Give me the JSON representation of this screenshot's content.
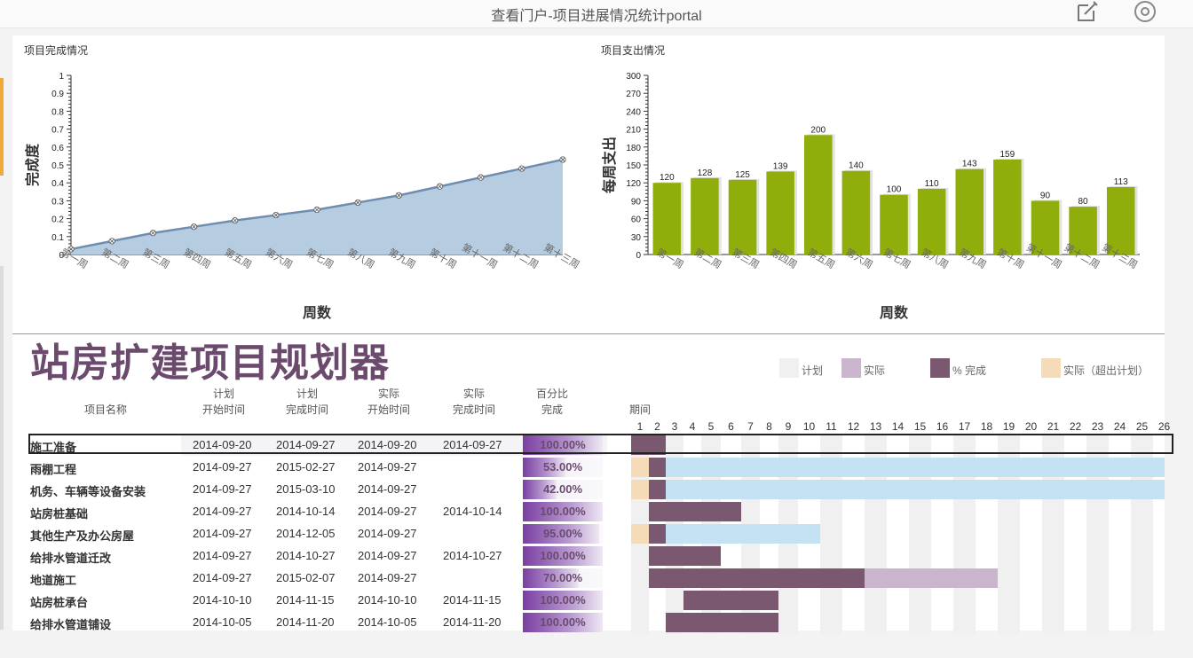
{
  "window": {
    "title": "查看门户-项目进展情况统计portal"
  },
  "icons": {
    "edit": "edit-icon",
    "target": "target-icon"
  },
  "chart_data": [
    {
      "type": "area",
      "title": "项目完成情况",
      "xlabel": "周数",
      "ylabel": "完成度",
      "categories": [
        "第一周",
        "第二周",
        "第三周",
        "第四周",
        "第五周",
        "第六周",
        "第七周",
        "第八周",
        "第九周",
        "第十周",
        "第十一周",
        "第十二周",
        "第十三周"
      ],
      "values": [
        0.03,
        0.075,
        0.12,
        0.155,
        0.19,
        0.22,
        0.25,
        0.29,
        0.33,
        0.38,
        0.43,
        0.48,
        0.53
      ],
      "ylim": [
        0,
        1
      ],
      "yticks": [
        "0",
        "0.1",
        "0.2",
        "0.3",
        "0.4",
        "0.5",
        "0.6",
        "0.7",
        "0.8",
        "0.9",
        "1"
      ],
      "grid": false,
      "color": "#b6cce0",
      "line_color": "#6f8db0"
    },
    {
      "type": "bar",
      "title": "项目支出情况",
      "xlabel": "周数",
      "ylabel": "每周支出",
      "categories": [
        "第一周",
        "第二周",
        "第三周",
        "第四周",
        "第五周",
        "第六周",
        "第七周",
        "第八周",
        "第九周",
        "第十周",
        "第十一周",
        "第十二周",
        "第十三周"
      ],
      "values": [
        120,
        128,
        125,
        139,
        200,
        140,
        100,
        110,
        143,
        159,
        90,
        80,
        113
      ],
      "ylim": [
        0,
        300
      ],
      "yticks": [
        "0",
        "30",
        "60",
        "90",
        "120",
        "150",
        "180",
        "210",
        "240",
        "270",
        "300"
      ],
      "grid": false,
      "color": "#8fae0c"
    }
  ],
  "planner": {
    "title": "站房扩建项目规划器",
    "legend": [
      {
        "label": "计划",
        "color": "#f0f0f0"
      },
      {
        "label": "实际",
        "color": "#c9b6cc"
      },
      {
        "label": "% 完成",
        "color": "#7a5870"
      },
      {
        "label": "实际（超出计划）",
        "color": "#f5dbb8"
      }
    ],
    "headers": {
      "name": "项目名称",
      "plan_start": [
        "计划",
        "开始时间"
      ],
      "plan_end": [
        "计划",
        "完成时间"
      ],
      "actual_start": [
        "实际",
        "开始时间"
      ],
      "actual_end": [
        "实际",
        "完成时间"
      ],
      "percent": [
        "百分比",
        "完成"
      ],
      "period": "期间"
    },
    "periods": [
      "1",
      "2",
      "3",
      "4",
      "5",
      "6",
      "7",
      "8",
      "9",
      "10",
      "11",
      "12",
      "13",
      "14",
      "15",
      "16",
      "17",
      "18",
      "19",
      "20",
      "21",
      "22",
      "23",
      "24",
      "25",
      "26"
    ],
    "rows": [
      {
        "name": "施工准备",
        "plan_start": "2014-09-20",
        "plan_end": "2014-09-27",
        "actual_start": "2014-09-20",
        "actual_end": "2014-09-27",
        "percent": "100.00%",
        "pct": 1.0
      },
      {
        "name": "雨棚工程",
        "plan_start": "2014-09-27",
        "plan_end": "2015-02-27",
        "actual_start": "2014-09-27",
        "actual_end": "",
        "percent": "53.00%",
        "pct": 0.53
      },
      {
        "name": "机务、车辆等设备安装",
        "plan_start": "2014-09-27",
        "plan_end": "2015-03-10",
        "actual_start": "2014-09-27",
        "actual_end": "",
        "percent": "42.00%",
        "pct": 0.42
      },
      {
        "name": "站房桩基础",
        "plan_start": "2014-09-27",
        "plan_end": "2014-10-14",
        "actual_start": "2014-09-27",
        "actual_end": "2014-10-14",
        "percent": "100.00%",
        "pct": 1.0
      },
      {
        "name": "其他生产及办公房屋",
        "plan_start": "2014-09-27",
        "plan_end": "2014-12-05",
        "actual_start": "2014-09-27",
        "actual_end": "",
        "percent": "95.00%",
        "pct": 0.95
      },
      {
        "name": "给排水管道迁改",
        "plan_start": "2014-09-27",
        "plan_end": "2014-10-27",
        "actual_start": "2014-09-27",
        "actual_end": "2014-10-27",
        "percent": "100.00%",
        "pct": 1.0
      },
      {
        "name": "地道施工",
        "plan_start": "2014-09-27",
        "plan_end": "2015-02-07",
        "actual_start": "2014-09-27",
        "actual_end": "",
        "percent": "70.00%",
        "pct": 0.7
      },
      {
        "name": "站房桩承台",
        "plan_start": "2014-10-10",
        "plan_end": "2014-11-15",
        "actual_start": "2014-10-10",
        "actual_end": "2014-11-15",
        "percent": "100.00%",
        "pct": 1.0
      },
      {
        "name": "给排水管道铺设",
        "plan_start": "2014-10-05",
        "plan_end": "2014-11-20",
        "actual_start": "2014-10-05",
        "actual_end": "2014-11-20",
        "percent": "100.00%",
        "pct": 1.0
      }
    ]
  }
}
